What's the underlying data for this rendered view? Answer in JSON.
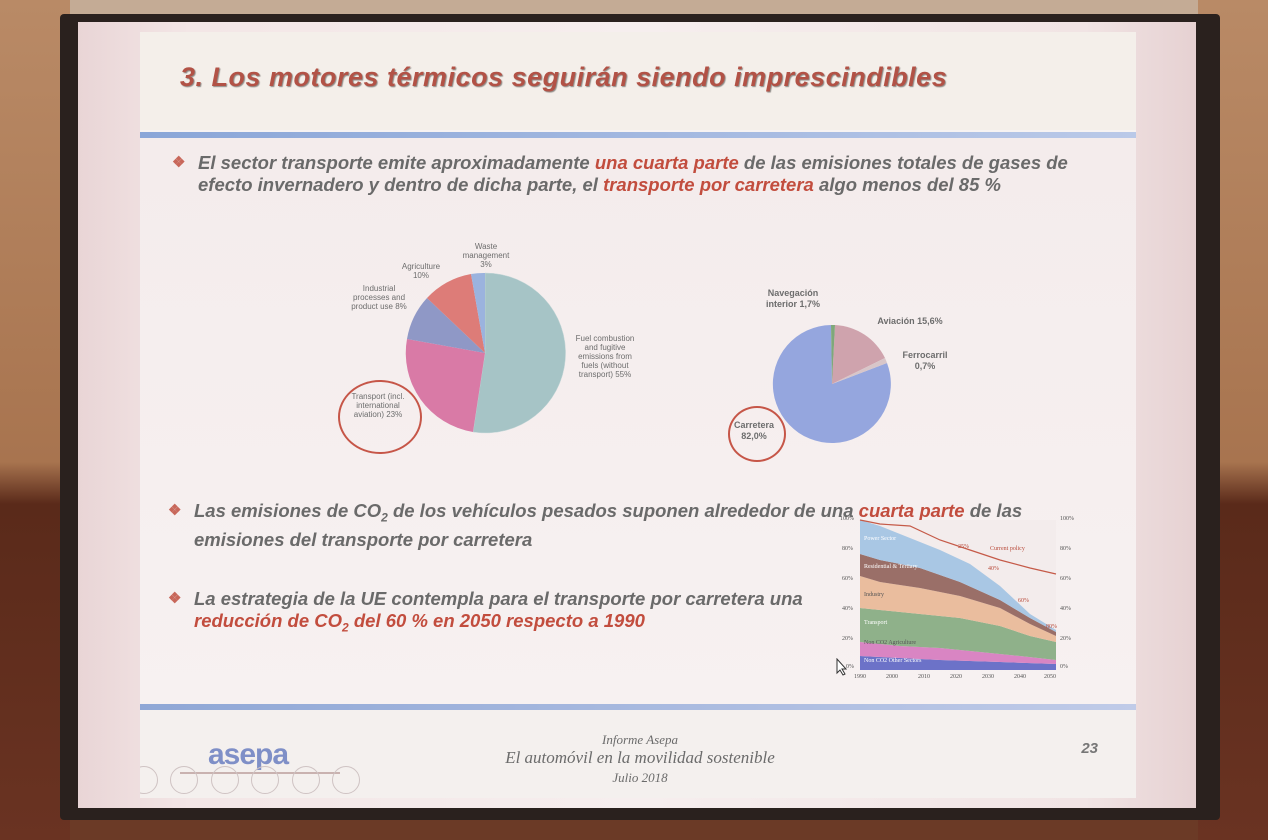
{
  "slide": {
    "title": "3. Los motores térmicos seguirán siendo imprescindibles",
    "bullet1": {
      "p1": "El sector transporte emite aproximadamente ",
      "h1": "una cuarta parte",
      "p2": " de las emisiones totales de gases de efecto invernadero y dentro de dicha parte, el ",
      "h2": "transporte por carretera",
      "p3": " algo menos del 85 %"
    },
    "bullet2": {
      "p1": "Las emisiones de CO",
      "sub": "2",
      "p2": " de los vehículos pesados suponen alrededor de una ",
      "h1": "cuarta parte",
      "p3": " de las emisiones del transporte por carretera"
    },
    "bullet3": {
      "p1": "La estrategia de la UE contempla para el transporte por carretera una ",
      "h1": "reducción de CO",
      "sub": "2",
      "h2": " del 60 % en 2050",
      "p2": " respecto a 1990"
    },
    "pie1_labels": {
      "waste": "Waste management 3%",
      "agri": "Agriculture 10%",
      "industrial": "Industrial processes and product use 8%",
      "transport": "Transport (incl. international aviation) 23%",
      "fuel": "Fuel combustion and fugitive emissions from fuels (without transport) 55%"
    },
    "pie2_labels": {
      "nav": "Navegación interior 1,7%",
      "aviacion": "Aviación 15,6%",
      "ferrocarril": "Ferrocarril 0,7%",
      "carretera": "Carretera 82,0%"
    },
    "area_chart": {
      "y_ticks": [
        "100%",
        "80%",
        "60%",
        "40%",
        "20%",
        "0%"
      ],
      "x_ticks": [
        "1990",
        "2000",
        "2010",
        "2020",
        "2030",
        "2040",
        "2050"
      ],
      "series_labels": [
        "Power Sector",
        "Residential & Tertiary",
        "Industry",
        "Transport",
        "Non CO2 Agriculture",
        "Non CO2 Other Sectors"
      ],
      "policy_label": "Current policy",
      "pct_labels": [
        "25%",
        "40%",
        "60%",
        "80%"
      ]
    },
    "footer": {
      "logo": "asepa",
      "line1": "Informe Asepa",
      "line2": "El automóvil en la movilidad sostenible",
      "line3": "Julio 2018",
      "page": "23"
    }
  },
  "colors": {
    "accent_red": "#c24d3e",
    "pie_fuel": "#a6c4c6",
    "pie_transport": "#d97aa6",
    "pie_industrial": "#8f98c6",
    "pie_agri": "#dd7c78",
    "pie_waste": "#9bb3de",
    "pie2_carretera": "#95a6de",
    "pie2_aviacion": "#cfa3ad"
  }
}
